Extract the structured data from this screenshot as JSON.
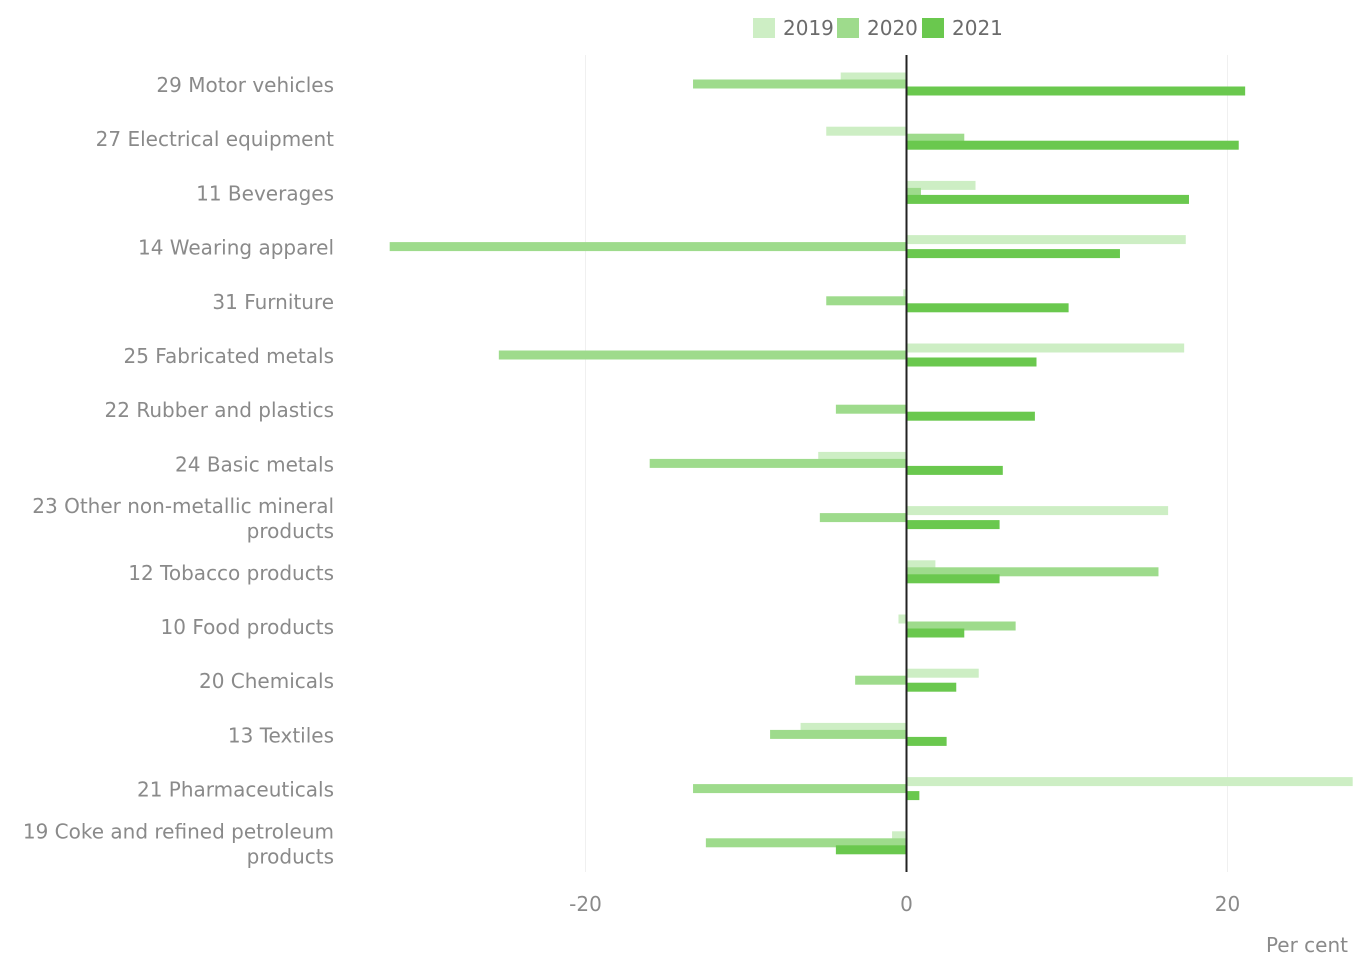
{
  "chart_data": {
    "type": "bar",
    "orientation": "horizontal",
    "categories": [
      "29 Motor vehicles",
      "27 Electrical equipment",
      "11 Beverages",
      "14 Wearing apparel",
      "31 Furniture",
      "25 Fabricated metals",
      "22 Rubber and plastics",
      "24 Basic metals",
      "23 Other non-metallic mineral products",
      "12 Tobacco products",
      "10 Food products",
      "20 Chemicals",
      "13 Textiles",
      "21 Pharmaceuticals",
      "19 Coke and refined petroleum products"
    ],
    "category_lines": [
      [
        "29 Motor vehicles"
      ],
      [
        "27 Electrical equipment"
      ],
      [
        "11 Beverages"
      ],
      [
        "14 Wearing apparel"
      ],
      [
        "31 Furniture"
      ],
      [
        "25 Fabricated metals"
      ],
      [
        "22 Rubber and plastics"
      ],
      [
        "24 Basic metals"
      ],
      [
        "23 Other non-metallic mineral",
        "products"
      ],
      [
        "12 Tobacco products"
      ],
      [
        "10 Food products"
      ],
      [
        "20 Chemicals"
      ],
      [
        "13 Textiles"
      ],
      [
        "21 Pharmaceuticals"
      ],
      [
        "19 Coke and refined petroleum",
        "products"
      ]
    ],
    "series": [
      {
        "name": "2019",
        "color": "#cdeec4",
        "values": [
          -4.1,
          -5.0,
          4.3,
          17.4,
          -0.2,
          17.3,
          0.0,
          -5.5,
          16.3,
          1.8,
          -0.5,
          4.5,
          -6.6,
          27.8,
          -0.9
        ]
      },
      {
        "name": "2020",
        "color": "#9edb8c",
        "values": [
          -13.3,
          3.6,
          0.9,
          -32.2,
          -5.0,
          -25.4,
          -4.4,
          -16.0,
          -5.4,
          15.7,
          6.8,
          -3.2,
          -8.5,
          -13.3,
          -12.5
        ]
      },
      {
        "name": "2021",
        "color": "#6ac84e",
        "values": [
          21.1,
          20.7,
          17.6,
          13.3,
          10.1,
          8.1,
          8.0,
          6.0,
          5.8,
          5.8,
          3.6,
          3.1,
          2.5,
          0.8,
          -4.4
        ]
      }
    ],
    "xlim": [
      -32.5,
      27.8
    ],
    "xticks": [
      -20,
      0,
      20
    ],
    "xtick_labels": [
      "-20",
      "0",
      "20"
    ],
    "xlabel": "Per cent",
    "grid": "vertical",
    "legend_position": "top-center"
  }
}
